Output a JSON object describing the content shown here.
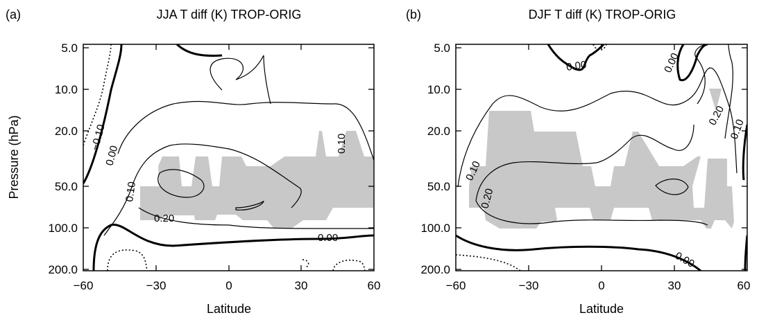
{
  "chart_data": [
    {
      "type": "contour",
      "panel": "(a)",
      "title": "JJA T diff (K) TROP-ORIG",
      "xlabel": "Latitude",
      "ylabel": "Pressure (hPa)",
      "xlim": [
        -60,
        60
      ],
      "y_scale": "log",
      "ylim": [
        200.0,
        5.0
      ],
      "x_ticks": [
        "−60",
        "−30",
        "0",
        "30",
        "60"
      ],
      "y_ticks": [
        "5.0",
        "10.0",
        "20.0",
        "50.0",
        "100.0",
        "200.0"
      ],
      "contour_labels": [
        "−0.10",
        "0.00",
        "0.10",
        "0.20",
        "0.10",
        "0.00"
      ],
      "contour_levels": [
        -0.1,
        0.0,
        0.1,
        0.2
      ],
      "shading": "gray = significant region, ~35S–60N, 30–80 hPa"
    },
    {
      "type": "contour",
      "panel": "(b)",
      "title": "DJF T diff (K) TROP-ORIG",
      "xlabel": "Latitude",
      "ylabel": "",
      "xlim": [
        -60,
        60
      ],
      "y_scale": "log",
      "ylim": [
        200.0,
        5.0
      ],
      "x_ticks": [
        "−60",
        "−30",
        "0",
        "30",
        "60"
      ],
      "y_ticks": [
        "5.0",
        "10.0",
        "20.0",
        "50.0",
        "100.0",
        "200.0"
      ],
      "contour_labels": [
        "0.00",
        "0.00",
        "0.20",
        "0.10",
        "0.10",
        "0.20",
        "0.00"
      ],
      "contour_levels": [
        -0.1,
        0.0,
        0.1,
        0.2
      ],
      "shading": "gray = significant region, ~55S–55N, 15–100 hPa"
    }
  ],
  "colors": {
    "shading": "#c8c8c8",
    "line": "#000000"
  }
}
